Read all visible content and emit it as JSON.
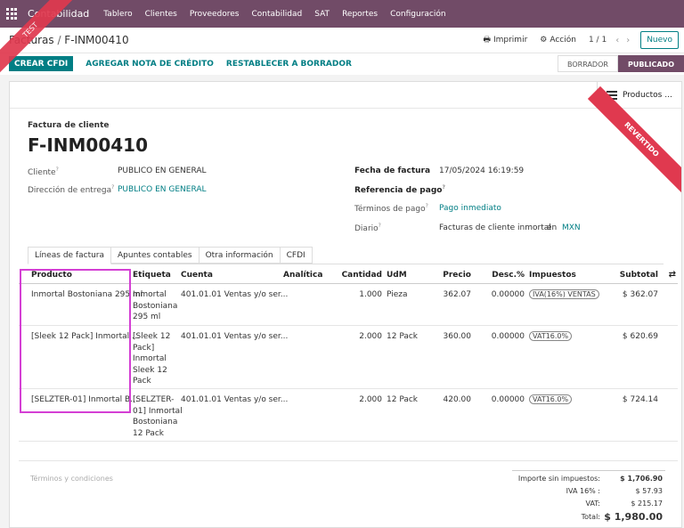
{
  "topnav": {
    "brand": "Contabilidad",
    "menu": [
      "Tablero",
      "Clientes",
      "Proveedores",
      "Contabilidad",
      "SAT",
      "Reportes",
      "Configuración"
    ]
  },
  "breadcrumb": {
    "parent": "Facturas",
    "current": "F-INM00410"
  },
  "toolbar": {
    "print": "Imprimir",
    "action": "Acción",
    "pager": "1 / 1",
    "new": "Nuevo"
  },
  "actions": {
    "create_cfdi": "CREAR CFDI",
    "credit_note": "AGREGAR NOTA DE CRÉDITO",
    "reset_draft": "RESTABLECER A BORRADOR"
  },
  "statusbar": {
    "draft": "BORRADOR",
    "posted": "PUBLICADO"
  },
  "smart_button": {
    "products": "Productos ..."
  },
  "ribbon": {
    "reverted": "REVERTIDO",
    "test": "TEST"
  },
  "invoice": {
    "type": "Factura de cliente",
    "number": "F-INM00410",
    "customer_label": "Cliente",
    "customer": "PUBLICO EN GENERAL",
    "delivery_label": "Dirección de entrega",
    "delivery": "PUBLICO EN GENERAL",
    "date_label": "Fecha de factura",
    "date": "17/05/2024 16:19:59",
    "payment_ref_label": "Referencia de pago",
    "terms_label": "Términos de pago",
    "terms": "Pago inmediato",
    "journal_label": "Diario",
    "journal": "Facturas de cliente inmortal",
    "currency_in": "en",
    "currency": "MXN"
  },
  "tabs": [
    "Líneas de factura",
    "Apuntes contables",
    "Otra información",
    "CFDI"
  ],
  "table": {
    "headers": {
      "product": "Producto",
      "label": "Etiqueta",
      "account": "Cuenta",
      "analytic": "Analítica",
      "qty": "Cantidad",
      "uom": "UdM",
      "price": "Precio",
      "disc": "Desc.%",
      "taxes": "Impuestos",
      "subtotal": "Subtotal"
    },
    "rows": [
      {
        "product": "Inmortal Bostoniana 295 ml",
        "label": [
          "Inmortal",
          "Bostoniana",
          "295 ml"
        ],
        "account": "401.01.01 Ventas y/o ser...",
        "qty": "1.000",
        "uom": "Pieza",
        "price": "362.07",
        "disc": "0.00000",
        "tax": "IVA(16%) VENTAS",
        "subtotal": "$ 362.07"
      },
      {
        "product": "[Sleek 12 Pack] Inmortal ...",
        "label": [
          "[Sleek 12",
          "Pack]",
          "Inmortal",
          "Sleek 12",
          "Pack"
        ],
        "account": "401.01.01 Ventas y/o ser...",
        "qty": "2.000",
        "uom": "12 Pack",
        "price": "360.00",
        "disc": "0.00000",
        "tax": "VAT16.0%",
        "subtotal": "$ 620.69"
      },
      {
        "product": "[SELZTER-01] Inmortal B...",
        "label": [
          "[SELZTER-",
          "01] Inmortal",
          "Bostoniana",
          "12 Pack"
        ],
        "account": "401.01.01 Ventas y/o ser...",
        "qty": "2.000",
        "uom": "12 Pack",
        "price": "420.00",
        "disc": "0.00000",
        "tax": "VAT16.0%",
        "subtotal": "$ 724.14"
      }
    ]
  },
  "terms_placeholder": "Términos y condiciones",
  "totals": {
    "untaxed_label": "Importe sin impuestos:",
    "untaxed": "$ 1,706.90",
    "iva_label": "IVA 16% :",
    "iva": "$ 57.93",
    "vat_label": "VAT:",
    "vat": "$ 215.17",
    "total_label": "Total:",
    "total": "$ 1,980.00"
  }
}
